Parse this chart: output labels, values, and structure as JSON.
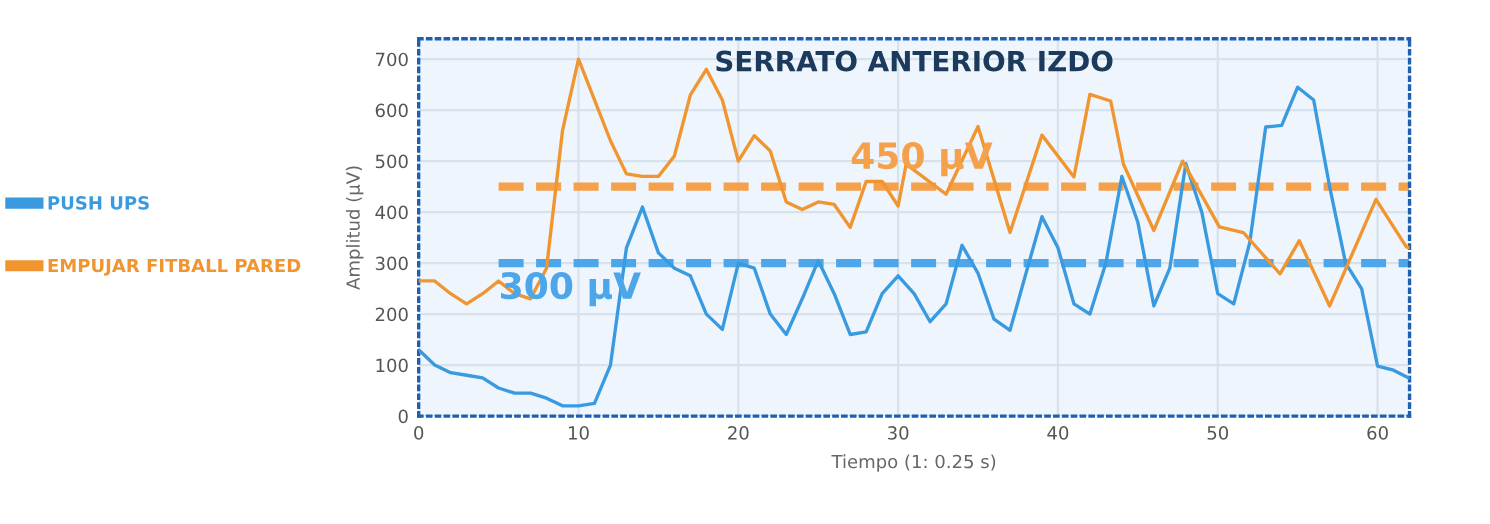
{
  "chart_data": {
    "type": "line",
    "title": "SERRATO ANTERIOR IZDO",
    "xlabel": "Tiempo (1: 0.25 s)",
    "ylabel": "Amplitud (µV)",
    "xlim": [
      0,
      62
    ],
    "xticks": [
      0,
      10,
      20,
      30,
      40,
      50,
      60
    ],
    "ylim": [
      0,
      740
    ],
    "yticks": [
      0,
      100,
      200,
      300,
      400,
      500,
      600,
      700
    ],
    "grid": true,
    "legend": "left",
    "marker": "none",
    "line_style": "solid",
    "series": [
      {
        "name": "PUSH UPS",
        "color": "#3a9ae0",
        "x": [
          0,
          1,
          2,
          3,
          4,
          5,
          6,
          7,
          8,
          9,
          10,
          11,
          12,
          13,
          14,
          15,
          16,
          17,
          18,
          19,
          20,
          21,
          22,
          23,
          24,
          25,
          26,
          27,
          28,
          29,
          30,
          31,
          32,
          33,
          34,
          35,
          36,
          37,
          38,
          39,
          40,
          41,
          42,
          43,
          44,
          45,
          46,
          47,
          48,
          49,
          50,
          51,
          52,
          53,
          54,
          55,
          56,
          57,
          58,
          59,
          60,
          61,
          62
        ],
        "values": [
          130,
          100,
          85,
          80,
          75,
          55,
          45,
          45,
          35,
          20,
          20,
          25,
          100,
          330,
          410,
          320,
          290,
          275,
          200,
          170,
          300,
          290,
          200,
          160,
          230,
          305,
          240,
          160,
          165,
          240,
          275,
          240,
          185,
          220,
          335,
          280,
          190,
          168,
          280,
          391,
          330,
          220,
          200,
          300,
          470,
          380,
          216,
          290,
          495,
          400,
          240,
          220,
          340,
          567,
          570,
          645,
          620,
          450,
          300,
          250,
          98,
          90,
          74
        ]
      },
      {
        "name": "EMPUJAR FITBALL PARED",
        "color": "#f0952f",
        "x": [
          0,
          1,
          2,
          3,
          4,
          5,
          6,
          7,
          8,
          9,
          10,
          11,
          12,
          13,
          14,
          15,
          16,
          17,
          18,
          19,
          20,
          21,
          22,
          23,
          24,
          25,
          26,
          27,
          28,
          29,
          30,
          30.5,
          33,
          35,
          37,
          39,
          41,
          42,
          43.3,
          44.1,
          46,
          47.8,
          50.1,
          51.6,
          53.9,
          55.1,
          57,
          59.9,
          61.8,
          62
        ],
        "values": [
          265,
          265,
          240,
          220,
          240,
          265,
          240,
          230,
          290,
          560,
          700,
          620,
          540,
          475,
          470,
          470,
          510,
          630,
          680,
          620,
          500,
          550,
          520,
          420,
          405,
          420,
          415,
          370,
          460,
          460,
          412,
          494,
          435,
          568,
          360,
          551,
          469,
          631,
          618,
          494,
          364,
          500,
          371,
          360,
          279,
          344,
          216,
          425,
          332,
          330
        ]
      }
    ],
    "ref_lines": [
      {
        "axis": "y",
        "value": 450,
        "label": "450 µV",
        "color": "#f5a04a",
        "line_style": "dashed"
      },
      {
        "axis": "y",
        "value": 300,
        "label": "300 µV",
        "color": "#4da6ea",
        "line_style": "dashed"
      }
    ]
  }
}
